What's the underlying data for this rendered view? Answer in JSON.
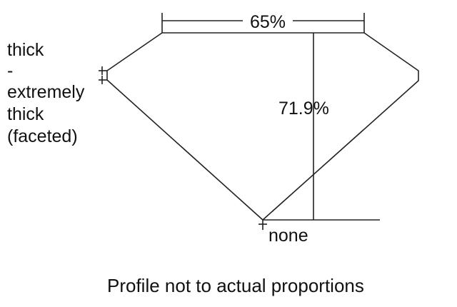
{
  "diagram": {
    "girdle_label_lines": [
      "thick",
      "-",
      "extremely",
      "thick",
      "(faceted)"
    ],
    "table_label": "65%",
    "depth_label": "71.9%",
    "culet_label": "none",
    "caption": "Profile not to actual proportions",
    "line_color": "#222222"
  }
}
